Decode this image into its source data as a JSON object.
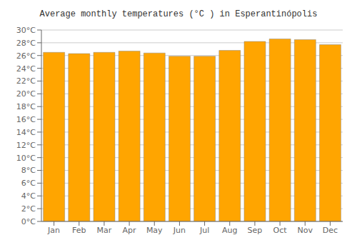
{
  "chart_data": {
    "type": "bar",
    "title": "Average monthly temperatures (°C ) in Esperantinópolis",
    "categories": [
      "Jan",
      "Feb",
      "Mar",
      "Apr",
      "May",
      "Jun",
      "Jul",
      "Aug",
      "Sep",
      "Oct",
      "Nov",
      "Dec"
    ],
    "values": [
      26.5,
      26.3,
      26.5,
      26.7,
      26.4,
      25.9,
      25.9,
      26.8,
      28.2,
      28.6,
      28.5,
      27.7
    ],
    "color": "#FFA500",
    "ylim": [
      0,
      30
    ],
    "yticks": [
      {
        "value": 0,
        "label": "0°C"
      },
      {
        "value": 2,
        "label": "2°C"
      },
      {
        "value": 4,
        "label": "4°C"
      },
      {
        "value": 6,
        "label": "6°C"
      },
      {
        "value": 8,
        "label": "8°C"
      },
      {
        "value": 10,
        "label": "10°C"
      },
      {
        "value": 12,
        "label": "12°C"
      },
      {
        "value": 14,
        "label": "14°C"
      },
      {
        "value": 16,
        "label": "16°C"
      },
      {
        "value": 18,
        "label": "18°C"
      },
      {
        "value": 20,
        "label": "20°C"
      },
      {
        "value": 22,
        "label": "22°C"
      },
      {
        "value": 24,
        "label": "24°C"
      },
      {
        "value": 26,
        "label": "26°C"
      },
      {
        "value": 28,
        "label": "28°C"
      },
      {
        "value": 30,
        "label": "30°C"
      }
    ],
    "grid": true
  }
}
